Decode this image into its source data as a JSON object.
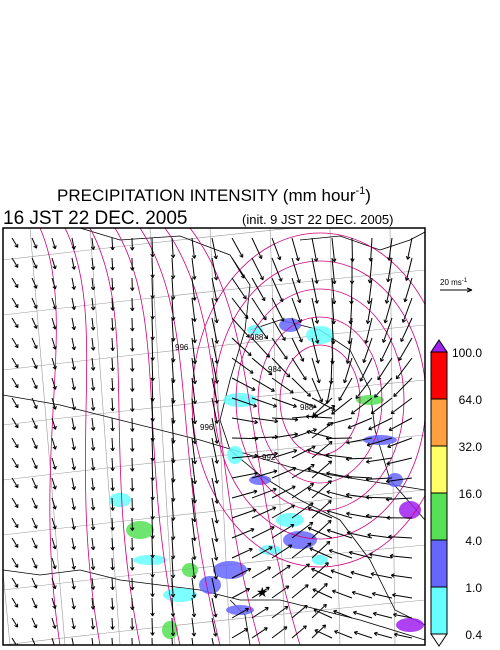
{
  "header": {
    "title": "PRECIPITATION INTENSITY (mm hour",
    "title_sup": "-1",
    "title_end": ")",
    "time": "16 JST 22 DEC. 2005",
    "init": "(init. 9 JST 22 DEC. 2005)"
  },
  "wind_legend": {
    "text": "20 ms",
    "sup": "-1"
  },
  "contour_labels": [
    "984",
    "988",
    "988",
    "992",
    "996",
    "996"
  ],
  "colorbar": {
    "top_color": "#a020f0",
    "bottom_color": "#ffffff",
    "segments": [
      {
        "color": "#ff0000"
      },
      {
        "color": "#ffa040"
      },
      {
        "color": "#ffff66"
      },
      {
        "color": "#55e055"
      },
      {
        "color": "#6666ff"
      },
      {
        "color": "#66ffff"
      }
    ],
    "labels": [
      "100.0",
      "64.0",
      "32.0",
      "16.0",
      "4.0",
      "1.0",
      "0.4"
    ]
  }
}
